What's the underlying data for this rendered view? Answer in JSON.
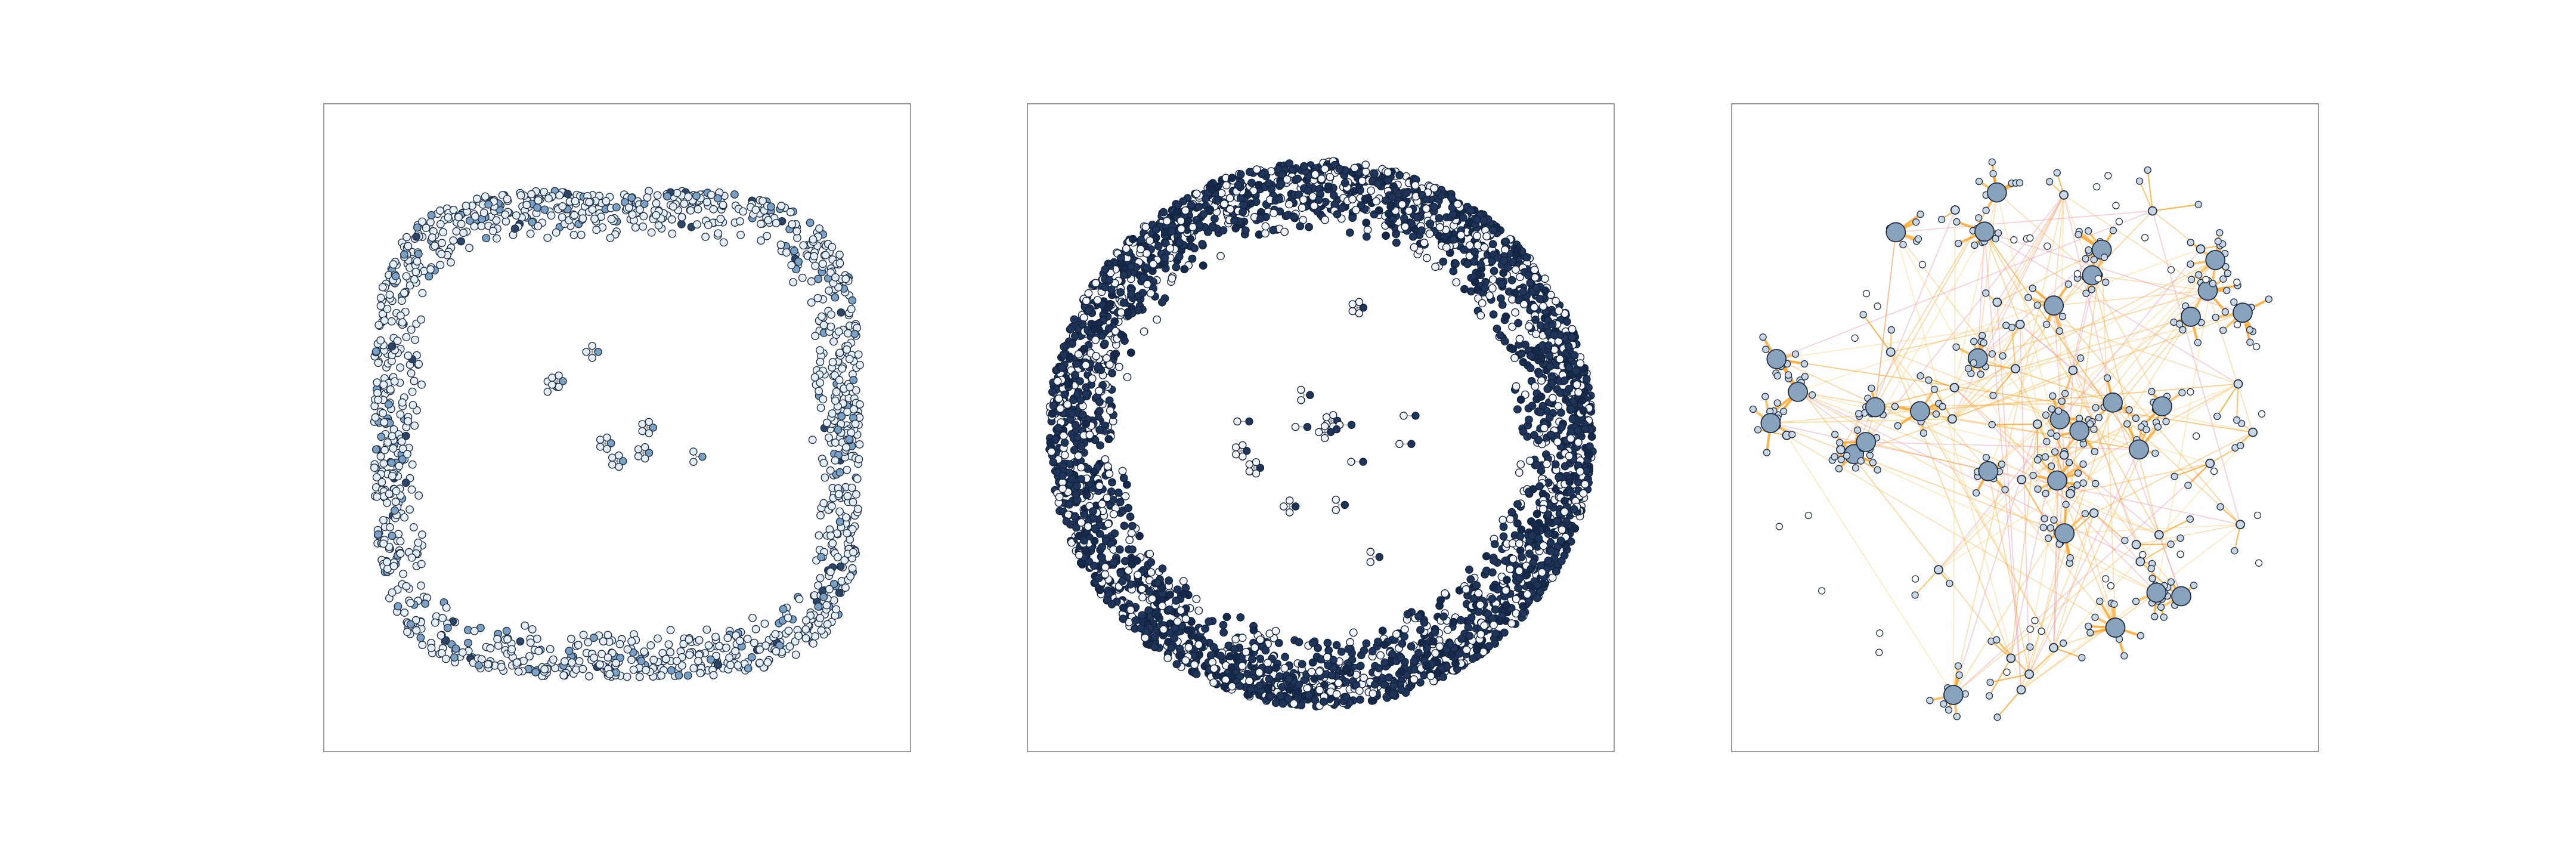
{
  "figure": {
    "panels": [
      {
        "name": "panel-left",
        "layout": "ring",
        "node_count": 1400,
        "ring_inner": 0.78,
        "ring_outer": 0.99,
        "squareness": 4,
        "inner_pair_count": 8,
        "node_fill": "#e6eef6",
        "node_fill_accent": "#7aa0c4",
        "node_fill_dark": "#2c4466",
        "node_stroke": "#1f2f46",
        "accent_fraction": 0.12,
        "dark_fraction": 0.03,
        "edges": false
      },
      {
        "name": "panel-middle",
        "layout": "ring",
        "node_count": 3200,
        "ring_inner": 0.72,
        "ring_outer": 1.0,
        "squareness": 2,
        "inner_pair_count": 16,
        "node_fill": "#f4f6f9",
        "node_fill_accent": "#1e3559",
        "node_fill_dark": "#15294a",
        "node_stroke": "#13233e",
        "accent_fraction": 0.55,
        "dark_fraction": 0.15,
        "edges": false
      },
      {
        "name": "panel-right",
        "layout": "clusters",
        "cluster_count": 60,
        "node_fill": "#c9d6e4",
        "node_stroke": "#1f2f46",
        "hub_fill": "#8aa3bd",
        "edge_colors": [
          "#ff9f1a",
          "#ffb347",
          "#f28ca0",
          "#ffcc66"
        ],
        "edges": true
      }
    ]
  }
}
